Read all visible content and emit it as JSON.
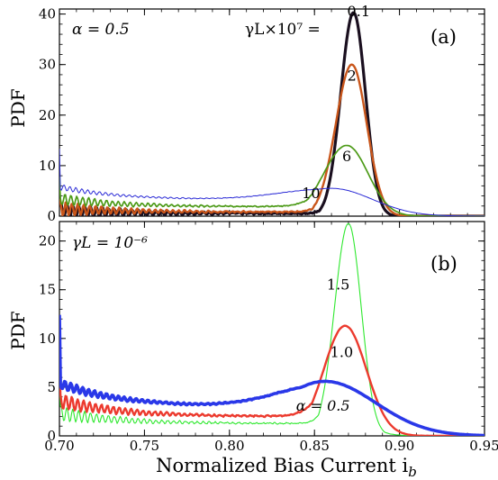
{
  "chart_data": [
    {
      "type": "line",
      "panel_label": "(a)",
      "ylabel": "PDF",
      "xlim": [
        0.7,
        0.95
      ],
      "ylim": [
        0,
        41
      ],
      "y_ticks": [
        0,
        10,
        20,
        30,
        40
      ],
      "y_tick_labels": [
        "0",
        "10",
        "20",
        "30",
        "40"
      ],
      "annotation": "α = 0.5",
      "legend_prefix": "γL×10⁷ = ",
      "series": [
        {
          "label": "0.1",
          "color": "#1a0f1f",
          "width": 3.2,
          "peak_x": 0.873,
          "peak_y": 40.3,
          "sigma_l": 0.0075,
          "sigma_r": 0.007,
          "base": 1.0,
          "noise": 1.6,
          "label_x": 0.876,
          "label_y": 39.6
        },
        {
          "label": "2",
          "color": "#c9561b",
          "width": 2.4,
          "peak_x": 0.872,
          "peak_y": 30.0,
          "sigma_l": 0.0095,
          "sigma_r": 0.0088,
          "base": 1.5,
          "noise": 1.4,
          "label_x": 0.872,
          "label_y": 26.8
        },
        {
          "label": "6",
          "color": "#4c9a17",
          "width": 1.7,
          "peak_x": 0.869,
          "peak_y": 14.0,
          "sigma_l": 0.0135,
          "sigma_r": 0.0125,
          "base": 3.4,
          "noise": 1.2,
          "label_x": 0.869,
          "label_y": 10.9
        },
        {
          "label": "10",
          "color": "#2b2bd6",
          "width": 1.0,
          "peak_x": 0.86,
          "peak_y": 5.5,
          "sigma_l": 0.03,
          "sigma_r": 0.024,
          "base": 5.8,
          "noise": 0.6,
          "label_x": 0.848,
          "label_y": 3.6
        }
      ]
    },
    {
      "type": "line",
      "panel_label": "(b)",
      "ylabel": "PDF",
      "xlabel": "Normalized Bias Current i",
      "xlabel_sub": "b",
      "xlim": [
        0.7,
        0.95
      ],
      "ylim": [
        0,
        22
      ],
      "x_ticks": [
        0.7,
        0.75,
        0.8,
        0.85,
        0.9,
        0.95
      ],
      "x_tick_labels": [
        "0.70",
        "0.75",
        "0.80",
        "0.85",
        "0.90",
        "0.95"
      ],
      "y_ticks": [
        0,
        5,
        10,
        15,
        20
      ],
      "y_tick_labels": [
        "0",
        "5",
        "10",
        "15",
        "20"
      ],
      "annotation": "γL = 10⁻⁶",
      "series": [
        {
          "label": "1.5",
          "color": "#2ee82e",
          "width": 1.1,
          "peak_x": 0.87,
          "peak_y": 21.8,
          "sigma_l": 0.0082,
          "sigma_r": 0.0075,
          "base": 2.3,
          "noise": 0.8,
          "label_x": 0.864,
          "label_y": 15.0
        },
        {
          "label": "1.0",
          "color": "#ec3a2e",
          "width": 2.4,
          "peak_x": 0.868,
          "peak_y": 11.3,
          "sigma_l": 0.0125,
          "sigma_r": 0.0125,
          "base": 3.6,
          "noise": 0.8,
          "label_x": 0.866,
          "label_y": 8.1
        },
        {
          "label": "α = 0.5",
          "color": "#2a38e8",
          "width": 3.6,
          "peak_x": 0.856,
          "peak_y": 5.6,
          "sigma_l": 0.028,
          "sigma_r": 0.03,
          "base": 5.4,
          "noise": 0.5,
          "label_x": 0.855,
          "label_y": 2.6
        }
      ]
    }
  ]
}
